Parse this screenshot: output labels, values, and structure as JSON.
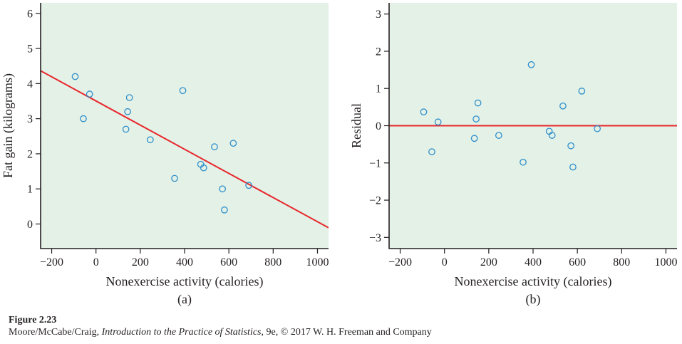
{
  "chart_data": [
    {
      "type": "scatter",
      "panel_label": "(a)",
      "xlabel": "Nonexercise activity (calories)",
      "ylabel": "Fat gain (kilograms)",
      "xlim": [
        -250,
        1050
      ],
      "ylim": [
        -0.7,
        6.3
      ],
      "xticks": [
        -200,
        0,
        200,
        400,
        600,
        800,
        1000
      ],
      "xtick_labels": [
        "−200",
        "0",
        "200",
        "400",
        "600",
        "800",
        "1000"
      ],
      "yticks": [
        0,
        1,
        2,
        3,
        4,
        5,
        6
      ],
      "ytick_labels": [
        "0",
        "1",
        "2",
        "3",
        "4",
        "5",
        "6"
      ],
      "background": "#e3f1e7",
      "point_color": "#2f8fcb",
      "line_color": "#e8262c",
      "grid": false,
      "points": [
        {
          "x": -94,
          "y": 4.2
        },
        {
          "x": -57,
          "y": 3.0
        },
        {
          "x": -29,
          "y": 3.7
        },
        {
          "x": 135,
          "y": 2.7
        },
        {
          "x": 143,
          "y": 3.2
        },
        {
          "x": 151,
          "y": 3.6
        },
        {
          "x": 245,
          "y": 2.4
        },
        {
          "x": 355,
          "y": 1.3
        },
        {
          "x": 392,
          "y": 3.8
        },
        {
          "x": 473,
          "y": 1.7
        },
        {
          "x": 486,
          "y": 1.6
        },
        {
          "x": 535,
          "y": 2.2
        },
        {
          "x": 571,
          "y": 1.0
        },
        {
          "x": 580,
          "y": 0.4
        },
        {
          "x": 620,
          "y": 2.3
        },
        {
          "x": 690,
          "y": 1.1
        }
      ],
      "regression_line": {
        "intercept": 3.505,
        "slope": -0.00344
      }
    },
    {
      "type": "scatter",
      "panel_label": "(b)",
      "xlabel": "Nonexercise activity (calories)",
      "ylabel": "Residual",
      "xlim": [
        -250,
        1050
      ],
      "ylim": [
        -3.3,
        3.3
      ],
      "xticks": [
        -200,
        0,
        200,
        400,
        600,
        800,
        1000
      ],
      "xtick_labels": [
        "−200",
        "0",
        "200",
        "400",
        "600",
        "800",
        "1000"
      ],
      "yticks": [
        -3,
        -2,
        -1,
        0,
        1,
        2,
        3
      ],
      "ytick_labels": [
        "−3",
        "−2",
        "−1",
        "0",
        "1",
        "2",
        "3"
      ],
      "background": "#e3f1e7",
      "point_color": "#2f8fcb",
      "line_color": "#e8262c",
      "grid": false,
      "points": [
        {
          "x": -94,
          "y": 0.37
        },
        {
          "x": -57,
          "y": -0.7
        },
        {
          "x": -29,
          "y": 0.1
        },
        {
          "x": 135,
          "y": -0.34
        },
        {
          "x": 143,
          "y": 0.18
        },
        {
          "x": 151,
          "y": 0.61
        },
        {
          "x": 245,
          "y": -0.26
        },
        {
          "x": 355,
          "y": -0.98
        },
        {
          "x": 392,
          "y": 1.64
        },
        {
          "x": 473,
          "y": -0.15
        },
        {
          "x": 486,
          "y": -0.26
        },
        {
          "x": 535,
          "y": 0.53
        },
        {
          "x": 571,
          "y": -0.54
        },
        {
          "x": 580,
          "y": -1.11
        },
        {
          "x": 620,
          "y": 0.93
        },
        {
          "x": 690,
          "y": -0.08
        }
      ],
      "reference_line": {
        "y": 0
      }
    }
  ],
  "caption": {
    "figure_label": "Figure 2.23",
    "source_authors": "Moore/McCabe/Craig, ",
    "source_title": "Introduction to the Practice of Statistics",
    "source_rest": ", 9e, © 2017 W. H. Freeman and Company"
  }
}
